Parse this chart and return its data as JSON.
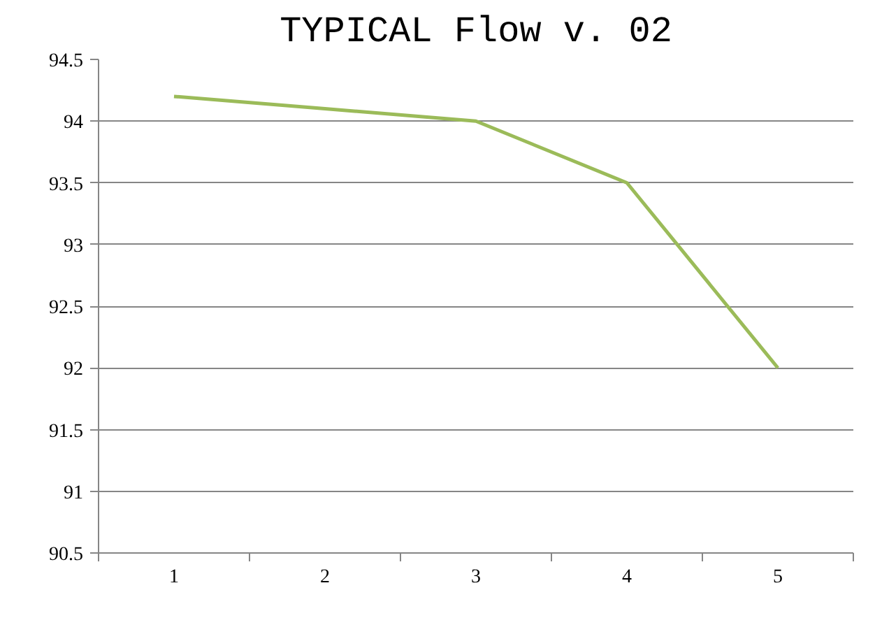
{
  "chart_data": {
    "type": "line",
    "title": "TYPICAL Flow v. 02",
    "categories": [
      "1",
      "2",
      "3",
      "4",
      "5"
    ],
    "series": [
      {
        "color": "#9bbb59",
        "values": [
          94.2,
          94.1,
          94.0,
          93.5,
          92.0
        ]
      }
    ],
    "ylim": [
      90.5,
      94.5
    ],
    "yticks": [
      90.5,
      91,
      91.5,
      92,
      92.5,
      93,
      93.5,
      94,
      94.5
    ],
    "grid": "y",
    "marker": "none"
  }
}
